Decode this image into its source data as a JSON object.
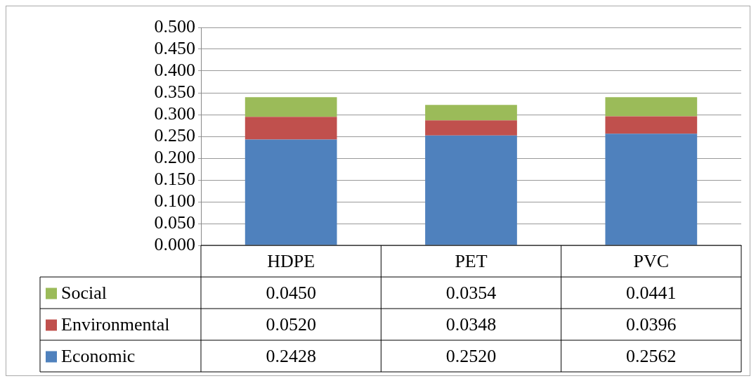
{
  "chart_data": {
    "type": "bar",
    "stacked": true,
    "categories": [
      "HDPE",
      "PET",
      "PVC"
    ],
    "series": [
      {
        "name": "Economic",
        "color": "#4f81bd",
        "values": [
          0.2428,
          0.252,
          0.2562
        ],
        "value_labels": [
          "0.2428",
          "0.2520",
          "0.2562"
        ]
      },
      {
        "name": "Environmental",
        "color": "#c0504d",
        "values": [
          0.052,
          0.0348,
          0.0396
        ],
        "value_labels": [
          "0.0520",
          "0.0348",
          "0.0396"
        ]
      },
      {
        "name": "Social",
        "color": "#9bbb59",
        "values": [
          0.045,
          0.0354,
          0.0441
        ],
        "value_labels": [
          "0.0450",
          "0.0354",
          "0.0441"
        ]
      }
    ],
    "ylim": [
      0,
      0.5
    ],
    "yticks": [
      {
        "value": 0,
        "label": "0.000"
      },
      {
        "value": 0.05,
        "label": "0.050"
      },
      {
        "value": 0.1,
        "label": "0.100"
      },
      {
        "value": 0.15,
        "label": "0.150"
      },
      {
        "value": 0.2,
        "label": "0.200"
      },
      {
        "value": 0.25,
        "label": "0.250"
      },
      {
        "value": 0.3,
        "label": "0.300"
      },
      {
        "value": 0.35,
        "label": "0.350"
      },
      {
        "value": 0.4,
        "label": "0.400"
      },
      {
        "value": 0.45,
        "label": "0.450"
      },
      {
        "value": 0.5,
        "label": "0.500"
      }
    ],
    "grid": "y",
    "legend": "bottom"
  }
}
